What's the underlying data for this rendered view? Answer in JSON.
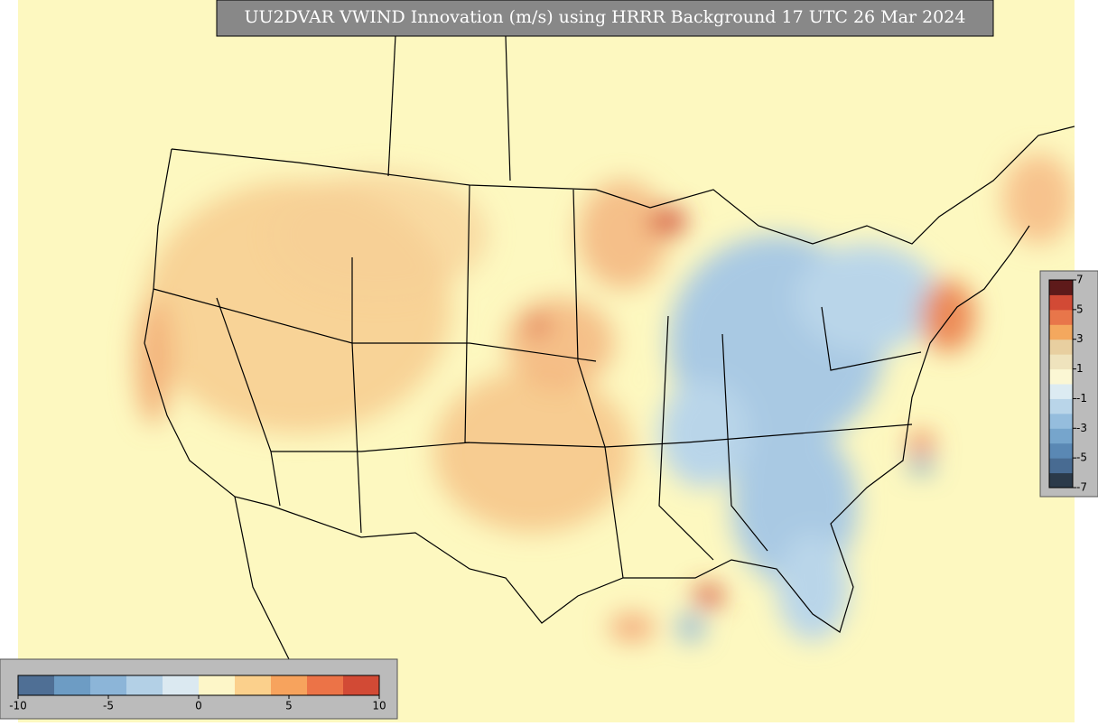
{
  "title": "UU2DVAR VWIND Innovation (m/s) using HRRR Background 17 UTC 26 Mar 2024",
  "colorbar_right": {
    "lim": [
      -7,
      7
    ],
    "ticks": [
      -7,
      -5,
      -3,
      -1,
      1,
      3,
      5,
      7
    ],
    "colors": [
      "#2b3a4a",
      "#486b92",
      "#5a88b4",
      "#76a5cc",
      "#95bddd",
      "#b9d5e9",
      "#dcebf2",
      "#fbf7d4",
      "#efe3bd",
      "#e8cfa0",
      "#f4a85e",
      "#e8764a",
      "#d24a35",
      "#5e1a1a"
    ]
  },
  "colorbar_bottom": {
    "lim": [
      -10,
      10
    ],
    "ticks": [
      -10,
      -5,
      0,
      5,
      10
    ],
    "colors": [
      "#4f6f95",
      "#6d9cc4",
      "#8cb5d8",
      "#b3d0e6",
      "#dbe9f1",
      "#fdf6c8",
      "#fbd08c",
      "#f7a35d",
      "#ec7347",
      "#d24a35"
    ]
  }
}
